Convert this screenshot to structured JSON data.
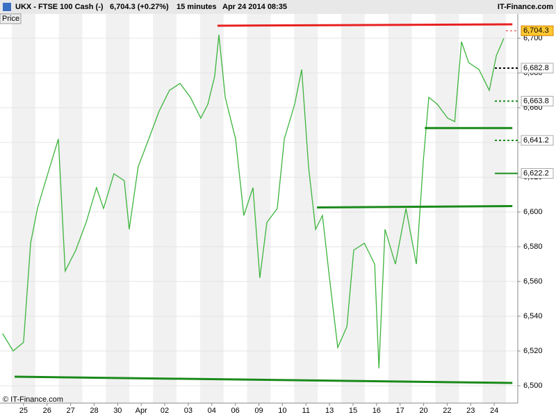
{
  "header": {
    "symbol": "UKX - FTSE 100 Cash (-)",
    "quote": "6,704.3 (+0.27%)",
    "interval": "15 minutes",
    "datetime": "Apr 24 2014 08:35",
    "brand": "IT-Finance.com"
  },
  "chart_data": {
    "type": "line",
    "panel_label": "Price",
    "footer": "© IT-Finance.com",
    "color": "#3cb43c",
    "x": [
      -0.89,
      -0.44,
      0,
      0.3,
      0.59,
      1.03,
      1.48,
      1.77,
      2.22,
      2.66,
      3.1,
      3.4,
      3.84,
      4.28,
      4.49,
      4.87,
      5.32,
      5.76,
      6.2,
      6.65,
      7.09,
      7.53,
      7.83,
      8.12,
      8.3,
      8.57,
      9.01,
      9.36,
      9.75,
      10.04,
      10.34,
      10.78,
      11.08,
      11.52,
      11.82,
      12.11,
      12.41,
      12.7,
      13.0,
      13.35,
      13.74,
      14.03,
      14.48,
      14.92,
      15.1,
      15.36,
      15.8,
      16.25,
      16.69,
      16.99,
      17.22,
      17.58,
      18.02,
      18.32,
      18.61,
      18.91,
      19.35,
      19.79,
      20.09,
      20.41
    ],
    "values": [
      6530,
      6520,
      6525,
      6582,
      6602,
      6622,
      6642,
      6566,
      6578,
      6594,
      6614,
      6602,
      6622,
      6618,
      6590,
      6626,
      6642,
      6658,
      6670,
      6674,
      6666,
      6654,
      6662,
      6678,
      6702,
      6666,
      6642,
      6598,
      6614,
      6562,
      6594,
      6602,
      6642,
      6662,
      6682,
      6626,
      6590,
      6598,
      6562,
      6522,
      6534,
      6578,
      6582,
      6570,
      6510,
      6590,
      6570,
      6602,
      6570,
      6630,
      6666,
      6662,
      6654,
      6652,
      6698,
      6686,
      6682,
      6670,
      6690,
      6700
    ],
    "xlim": [
      -1,
      21
    ],
    "xticks": [
      {
        "value": 0,
        "label": "25"
      },
      {
        "value": 1,
        "label": "26"
      },
      {
        "value": 2,
        "label": "27"
      },
      {
        "value": 3,
        "label": "28"
      },
      {
        "value": 4,
        "label": "30"
      },
      {
        "value": 5,
        "label": "Apr"
      },
      {
        "value": 6,
        "label": "02"
      },
      {
        "value": 7,
        "label": "03"
      },
      {
        "value": 8,
        "label": "04"
      },
      {
        "value": 9,
        "label": "06"
      },
      {
        "value": 10,
        "label": "09"
      },
      {
        "value": 11,
        "label": "10"
      },
      {
        "value": 12,
        "label": "11"
      },
      {
        "value": 13,
        "label": "13"
      },
      {
        "value": 14,
        "label": "15"
      },
      {
        "value": 15,
        "label": "16"
      },
      {
        "value": 16,
        "label": "17"
      },
      {
        "value": 17,
        "label": "20"
      },
      {
        "value": 18,
        "label": "22"
      },
      {
        "value": 19,
        "label": "23"
      },
      {
        "value": 20,
        "label": "24"
      }
    ],
    "ylim": [
      6490,
      6714
    ],
    "yticks": [
      {
        "value": 6500,
        "label": "6,500"
      },
      {
        "value": 6520,
        "label": "6,520"
      },
      {
        "value": 6540,
        "label": "6,540"
      },
      {
        "value": 6560,
        "label": "6,560"
      },
      {
        "value": 6580,
        "label": "6,580"
      },
      {
        "value": 6600,
        "label": "6,600"
      },
      {
        "value": 6620,
        "label": "6,620"
      },
      {
        "value": 6640,
        "label": "6,640"
      },
      {
        "value": 6660,
        "label": "6,660"
      },
      {
        "value": 6680,
        "label": "6,680"
      },
      {
        "value": 6700,
        "label": "6,700"
      }
    ],
    "trendlines": [
      {
        "x": [
          8.24,
          20.77
        ],
        "y": [
          6707.2,
          6708.0
        ],
        "color": "#e82020"
      },
      {
        "x": [
          -0.38,
          20.77
        ],
        "y": [
          6505.2,
          6501.6
        ],
        "color": "#1a8a1a"
      },
      {
        "x": [
          12.47,
          20.77
        ],
        "y": [
          6602.6,
          6603.4
        ],
        "color": "#1a8a1a"
      },
      {
        "x": [
          17.05,
          20.77
        ],
        "y": [
          6648.3,
          6648.3
        ],
        "color": "#1a8a1a"
      }
    ],
    "levels": [
      {
        "value": 6704.3,
        "label": "6,704.3",
        "color": "#e82020",
        "style": "dashed",
        "highlight": true
      },
      {
        "value": 6682.8,
        "label": "6,682.8",
        "color": "#000000",
        "style": "dashed",
        "highlight": false
      },
      {
        "value": 6663.8,
        "label": "6,663.8",
        "color": "#1a8a1a",
        "style": "dashed",
        "highlight": false
      },
      {
        "value": 6641.2,
        "label": "6,641.2",
        "color": "#1a8a1a",
        "style": "dashed",
        "highlight": false
      },
      {
        "value": 6622.2,
        "label": "6,622.2",
        "color": "#1a8a1a",
        "style": "solid",
        "highlight": false
      }
    ]
  }
}
